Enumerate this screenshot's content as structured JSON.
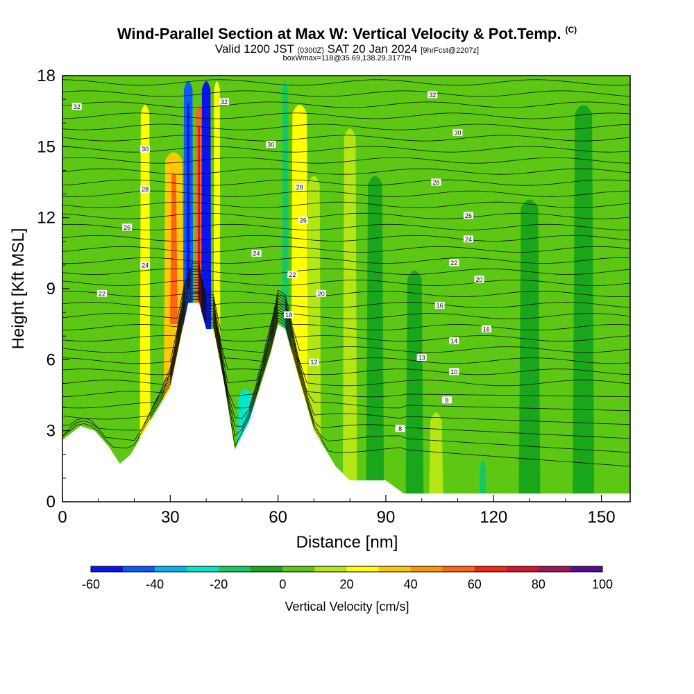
{
  "header": {
    "title": "Wind-Parallel Section at Max W: Vertical Velocity & Pot.Temp.",
    "title_mark": "(C)",
    "valid_prefix": "Valid 1200 JST",
    "valid_utc": "(0300Z)",
    "valid_date": "SAT 20 Jan 2024",
    "forecast_info": "[9hrFcst@2207z]",
    "box_info": "boxWmax=118@35.69,138.29,3177m"
  },
  "chart_data": {
    "type": "heatmap",
    "xlabel": "Distance [nm]",
    "ylabel": "Height [Kft MSL]",
    "xlim": [
      0,
      158
    ],
    "ylim": [
      0,
      18
    ],
    "x_ticks": [
      "0",
      "30",
      "60",
      "90",
      "120",
      "150"
    ],
    "y_ticks": [
      "0",
      "3",
      "6",
      "9",
      "12",
      "15",
      "18"
    ],
    "terrain": [
      [
        0,
        2.6
      ],
      [
        5,
        3.2
      ],
      [
        9,
        3.0
      ],
      [
        13,
        2.3
      ],
      [
        16,
        1.6
      ],
      [
        19,
        2.0
      ],
      [
        24,
        3.3
      ],
      [
        30,
        4.8
      ],
      [
        35,
        8.4
      ],
      [
        38,
        8.4
      ],
      [
        40,
        7.3
      ],
      [
        42,
        7.3
      ],
      [
        45,
        5.0
      ],
      [
        48,
        2.2
      ],
      [
        52,
        3.4
      ],
      [
        58,
        6.3
      ],
      [
        60,
        7.5
      ],
      [
        62,
        7.3
      ],
      [
        65,
        5.6
      ],
      [
        70,
        3.0
      ],
      [
        76,
        1.5
      ],
      [
        80,
        0.9
      ],
      [
        90,
        0.9
      ],
      [
        95,
        0.35
      ],
      [
        158,
        0.35
      ]
    ],
    "velocity_columns": [
      {
        "x": 23,
        "width": 3,
        "value": 25,
        "top": 17
      },
      {
        "x": 31,
        "width": 6,
        "value": 35,
        "top": 15
      },
      {
        "x": 35,
        "width": 3,
        "value": -50,
        "top": 18
      },
      {
        "x": 38,
        "width": 2,
        "value": 50,
        "top": 17
      },
      {
        "x": 40,
        "width": 3,
        "value": -55,
        "top": 18
      },
      {
        "x": 43,
        "width": 2,
        "value": 25,
        "top": 18
      },
      {
        "x": 51,
        "width": 5,
        "value": -22,
        "top": 5
      },
      {
        "x": 62,
        "width": 2,
        "value": -15,
        "top": 18
      },
      {
        "x": 66,
        "width": 5,
        "value": 25,
        "top": 17
      },
      {
        "x": 70,
        "width": 4,
        "value": 15,
        "top": 14
      },
      {
        "x": 80,
        "width": 4,
        "value": 10,
        "top": 16
      },
      {
        "x": 87,
        "width": 5,
        "value": -5,
        "top": 14
      },
      {
        "x": 98,
        "width": 5,
        "value": -8,
        "top": 10
      },
      {
        "x": 104,
        "width": 4,
        "value": 15,
        "top": 4
      },
      {
        "x": 117,
        "width": 2,
        "value": -20,
        "top": 2
      },
      {
        "x": 130,
        "width": 6,
        "value": -5,
        "top": 13
      },
      {
        "x": 145,
        "width": 6,
        "value": -8,
        "top": 17
      }
    ],
    "theta_levels": [
      8,
      10,
      12,
      14,
      16,
      18,
      20,
      22,
      24,
      26,
      28,
      30,
      32
    ],
    "theta_labels": [
      {
        "text": "32",
        "x": 4,
        "y": 16.7
      },
      {
        "text": "32",
        "x": 45,
        "y": 16.9
      },
      {
        "text": "32",
        "x": 103,
        "y": 17.2
      },
      {
        "text": "30",
        "x": 23,
        "y": 14.9
      },
      {
        "text": "30",
        "x": 58,
        "y": 15.1
      },
      {
        "text": "30",
        "x": 110,
        "y": 15.6
      },
      {
        "text": "28",
        "x": 23,
        "y": 13.2
      },
      {
        "text": "28",
        "x": 66,
        "y": 13.3
      },
      {
        "text": "28",
        "x": 104,
        "y": 13.5
      },
      {
        "text": "26",
        "x": 18,
        "y": 11.6
      },
      {
        "text": "26",
        "x": 67,
        "y": 11.9
      },
      {
        "text": "26",
        "x": 113,
        "y": 12.1
      },
      {
        "text": "24",
        "x": 23,
        "y": 10.0
      },
      {
        "text": "24",
        "x": 54,
        "y": 10.5
      },
      {
        "text": "24",
        "x": 113,
        "y": 11.1
      },
      {
        "text": "22",
        "x": 11,
        "y": 8.8
      },
      {
        "text": "22",
        "x": 64,
        "y": 9.6
      },
      {
        "text": "22",
        "x": 109,
        "y": 10.1
      },
      {
        "text": "20",
        "x": 72,
        "y": 8.8
      },
      {
        "text": "20",
        "x": 116,
        "y": 9.4
      },
      {
        "text": "18",
        "x": 63,
        "y": 7.9
      },
      {
        "text": "16",
        "x": 105,
        "y": 8.3
      },
      {
        "text": "16",
        "x": 118,
        "y": 7.3
      },
      {
        "text": "14",
        "x": 109,
        "y": 6.8
      },
      {
        "text": "13",
        "x": 100,
        "y": 6.1
      },
      {
        "text": "12",
        "x": 70,
        "y": 5.9
      },
      {
        "text": "10",
        "x": 109,
        "y": 5.5
      },
      {
        "text": "8",
        "x": 107,
        "y": 4.3
      },
      {
        "text": "8",
        "x": 94,
        "y": 3.1
      }
    ],
    "colorbar": {
      "label": "Vertical Velocity [cm/s]",
      "tick_labels": [
        "-60",
        "-40",
        "-20",
        "0",
        "20",
        "40",
        "60",
        "80",
        "100"
      ],
      "colors": [
        "#0a14f0",
        "#0a5cf5",
        "#00b4f0",
        "#00e6c8",
        "#14c864",
        "#1aa61a",
        "#5cc814",
        "#b4e614",
        "#ffff00",
        "#ffc800",
        "#ff9600",
        "#ff6414",
        "#f02814",
        "#d21432",
        "#a0145a",
        "#5a0a8c"
      ]
    }
  }
}
